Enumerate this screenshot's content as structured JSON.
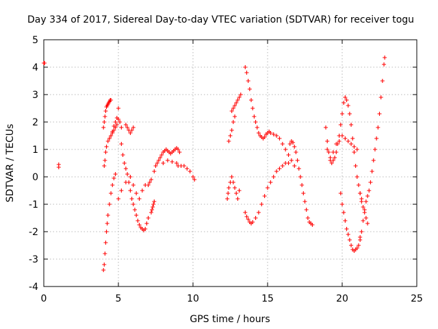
{
  "chart_data": {
    "type": "scatter",
    "title": "Day 334 of 2017, Sidereal Day-to-day VTEC variation (SDTVAR) for receiver togu",
    "xlabel": "GPS time / hours",
    "ylabel": "SDTVAR / TECUs",
    "xlim": [
      0,
      25
    ],
    "ylim": [
      -4,
      5
    ],
    "xticks": [
      "0",
      "5",
      "10",
      "15",
      "20",
      "25"
    ],
    "yticks": [
      "-4",
      "-3",
      "-2",
      "-1",
      "0",
      "1",
      "2",
      "3",
      "4",
      "5"
    ],
    "grid": true,
    "marker": "plus",
    "color": "#ff0000",
    "series": [
      {
        "name": "SDTVAR",
        "x": [
          0.0,
          0.05,
          1.0,
          1.0,
          4.0,
          4.05,
          4.1,
          4.15,
          4.2,
          4.25,
          4.3,
          4.35,
          4.4,
          4.45,
          4.5,
          4.4,
          4.5,
          4.6,
          4.7,
          4.8,
          4.9,
          5.0,
          4.05,
          4.1,
          4.15,
          4.2,
          4.3,
          4.4,
          4.5,
          4.6,
          4.7,
          4.8,
          4.9,
          5.0,
          5.1,
          5.2,
          4.0,
          4.05,
          4.1,
          4.15,
          4.2,
          4.25,
          4.3,
          4.4,
          4.5,
          4.6,
          4.7,
          4.8,
          5.2,
          5.3,
          5.4,
          5.5,
          5.6,
          5.7,
          5.8,
          5.9,
          6.0,
          6.1,
          6.2,
          6.3,
          6.4,
          6.5,
          6.6,
          6.7,
          6.8,
          6.9,
          7.0,
          5.5,
          5.6,
          5.7,
          5.8,
          5.9,
          6.0,
          5.0,
          5.2,
          5.5,
          5.8,
          6.0,
          6.2,
          6.4,
          6.6,
          6.8,
          7.0,
          7.1,
          7.2,
          7.2,
          7.25,
          7.3,
          7.35,
          7.4,
          7.4,
          7.5,
          7.6,
          7.7,
          7.8,
          7.9,
          8.0,
          8.1,
          8.2,
          8.3,
          8.4,
          8.5,
          8.6,
          8.7,
          8.8,
          8.9,
          9.0,
          9.1,
          8.0,
          8.3,
          8.6,
          8.9,
          9.0,
          9.2,
          9.4,
          9.6,
          9.8,
          10.0,
          10.1,
          12.3,
          12.35,
          12.4,
          12.5,
          12.6,
          12.7,
          12.8,
          12.9,
          13.0,
          13.1,
          12.4,
          12.5,
          12.6,
          12.7,
          12.8,
          12.6,
          12.7,
          12.8,
          12.9,
          13.0,
          13.1,
          13.2,
          13.5,
          13.6,
          13.7,
          13.8,
          13.9,
          14.0,
          14.1,
          14.2,
          14.3,
          14.4,
          14.5,
          14.6,
          14.7,
          14.8,
          14.9,
          15.0,
          15.1,
          15.2,
          15.4,
          15.6,
          15.8,
          16.0,
          16.2,
          16.4,
          16.6,
          16.8,
          13.5,
          13.6,
          13.7,
          13.8,
          13.9,
          14.0,
          14.2,
          14.4,
          14.6,
          14.8,
          15.0,
          15.2,
          15.4,
          15.6,
          15.8,
          16.0,
          16.2,
          16.4,
          16.5,
          16.6,
          16.7,
          16.8,
          16.9,
          17.0,
          17.1,
          17.2,
          17.3,
          17.4,
          17.5,
          17.6,
          17.7,
          17.8,
          17.9,
          18.0,
          18.9,
          19.0,
          19.1,
          19.2,
          19.3,
          19.4,
          19.5,
          19.6,
          19.7,
          19.8,
          19.9,
          20.0,
          20.1,
          20.2,
          20.3,
          20.4,
          20.5,
          20.6,
          20.7,
          20.8,
          20.9,
          21.0,
          21.1,
          21.2,
          21.3,
          19.0,
          19.2,
          19.4,
          19.6,
          19.8,
          20.0,
          20.2,
          20.4,
          20.6,
          20.8,
          21.0,
          19.9,
          20.0,
          20.1,
          20.2,
          20.3,
          20.4,
          20.5,
          20.6,
          20.7,
          20.8,
          20.9,
          21.0,
          21.1,
          21.2,
          21.2,
          21.3,
          21.4,
          21.5,
          21.6,
          21.7,
          21.8,
          21.9,
          22.0,
          22.1,
          22.2,
          22.3,
          22.4,
          22.5,
          22.6,
          22.7,
          22.8,
          22.85,
          21.2,
          21.3,
          21.4,
          21.5,
          21.6,
          21.7
        ],
        "y": [
          4.15,
          4.15,
          0.35,
          0.45,
          1.8,
          2.0,
          2.2,
          2.4,
          2.55,
          2.6,
          2.65,
          2.7,
          2.75,
          2.8,
          2.8,
          1.4,
          1.5,
          1.65,
          1.85,
          2.0,
          2.15,
          2.5,
          0.4,
          0.6,
          0.9,
          1.1,
          1.3,
          1.4,
          1.5,
          1.6,
          1.7,
          1.8,
          1.9,
          2.1,
          2.0,
          1.8,
          -3.4,
          -3.2,
          -2.8,
          -2.4,
          -2.0,
          -1.7,
          -1.4,
          -1.0,
          -0.6,
          -0.3,
          -0.05,
          0.1,
          1.2,
          0.8,
          0.5,
          0.3,
          0.1,
          -0.2,
          -0.5,
          -0.8,
          -1.0,
          -1.2,
          -1.4,
          -1.6,
          -1.75,
          -1.85,
          -1.9,
          -1.95,
          -1.9,
          -1.7,
          -1.5,
          1.9,
          1.8,
          1.7,
          1.6,
          1.7,
          1.8,
          -0.8,
          -0.5,
          -0.2,
          0.0,
          -0.3,
          -0.6,
          -0.8,
          -0.5,
          -0.3,
          -0.3,
          -0.2,
          -0.1,
          -1.3,
          -1.2,
          -1.1,
          -1.0,
          -0.9,
          0.2,
          0.4,
          0.5,
          0.6,
          0.7,
          0.8,
          0.9,
          0.95,
          1.0,
          0.95,
          0.9,
          0.85,
          0.9,
          0.95,
          1.0,
          1.05,
          1.0,
          0.9,
          0.5,
          0.6,
          0.55,
          0.5,
          0.4,
          0.4,
          0.4,
          0.3,
          0.2,
          0.0,
          -0.1,
          -0.8,
          -0.6,
          -0.4,
          -0.2,
          0.0,
          -0.2,
          -0.4,
          -0.6,
          -0.8,
          -0.5,
          1.3,
          1.5,
          1.7,
          2.0,
          2.2,
          2.4,
          2.5,
          2.6,
          2.7,
          2.8,
          2.9,
          3.0,
          4.0,
          3.8,
          3.5,
          3.2,
          2.8,
          2.5,
          2.2,
          2.0,
          1.8,
          1.6,
          1.5,
          1.45,
          1.4,
          1.45,
          1.55,
          1.6,
          1.65,
          1.6,
          1.55,
          1.5,
          1.4,
          1.2,
          1.0,
          0.8,
          0.6,
          0.4,
          -1.3,
          -1.45,
          -1.55,
          -1.65,
          -1.7,
          -1.65,
          -1.5,
          -1.3,
          -1.0,
          -0.7,
          -0.4,
          -0.2,
          0.0,
          0.2,
          0.3,
          0.4,
          0.5,
          0.5,
          1.2,
          1.3,
          1.25,
          1.1,
          0.9,
          0.6,
          0.3,
          0.0,
          -0.3,
          -0.6,
          -0.9,
          -1.2,
          -1.5,
          -1.65,
          -1.7,
          -1.75,
          1.8,
          1.3,
          0.9,
          0.6,
          0.5,
          0.6,
          0.7,
          0.9,
          1.2,
          1.5,
          1.9,
          2.3,
          2.7,
          2.9,
          2.8,
          2.6,
          2.3,
          1.9,
          1.4,
          0.9,
          0.4,
          0.0,
          -0.3,
          -0.6,
          -0.8,
          1.0,
          0.7,
          0.9,
          1.2,
          1.3,
          1.5,
          1.4,
          1.3,
          1.2,
          1.1,
          1.0,
          -0.6,
          -1.0,
          -1.3,
          -1.6,
          -1.9,
          -2.1,
          -2.3,
          -2.5,
          -2.65,
          -2.7,
          -2.65,
          -2.6,
          -2.5,
          -2.3,
          -2.2,
          -2.0,
          -1.6,
          -1.2,
          -0.9,
          -0.7,
          -0.5,
          -0.2,
          0.2,
          0.6,
          1.0,
          1.4,
          1.8,
          2.3,
          2.9,
          3.5,
          4.1,
          4.35,
          -0.6,
          -0.9,
          -1.1,
          -1.3,
          -1.5,
          -1.7
        ]
      }
    ]
  }
}
